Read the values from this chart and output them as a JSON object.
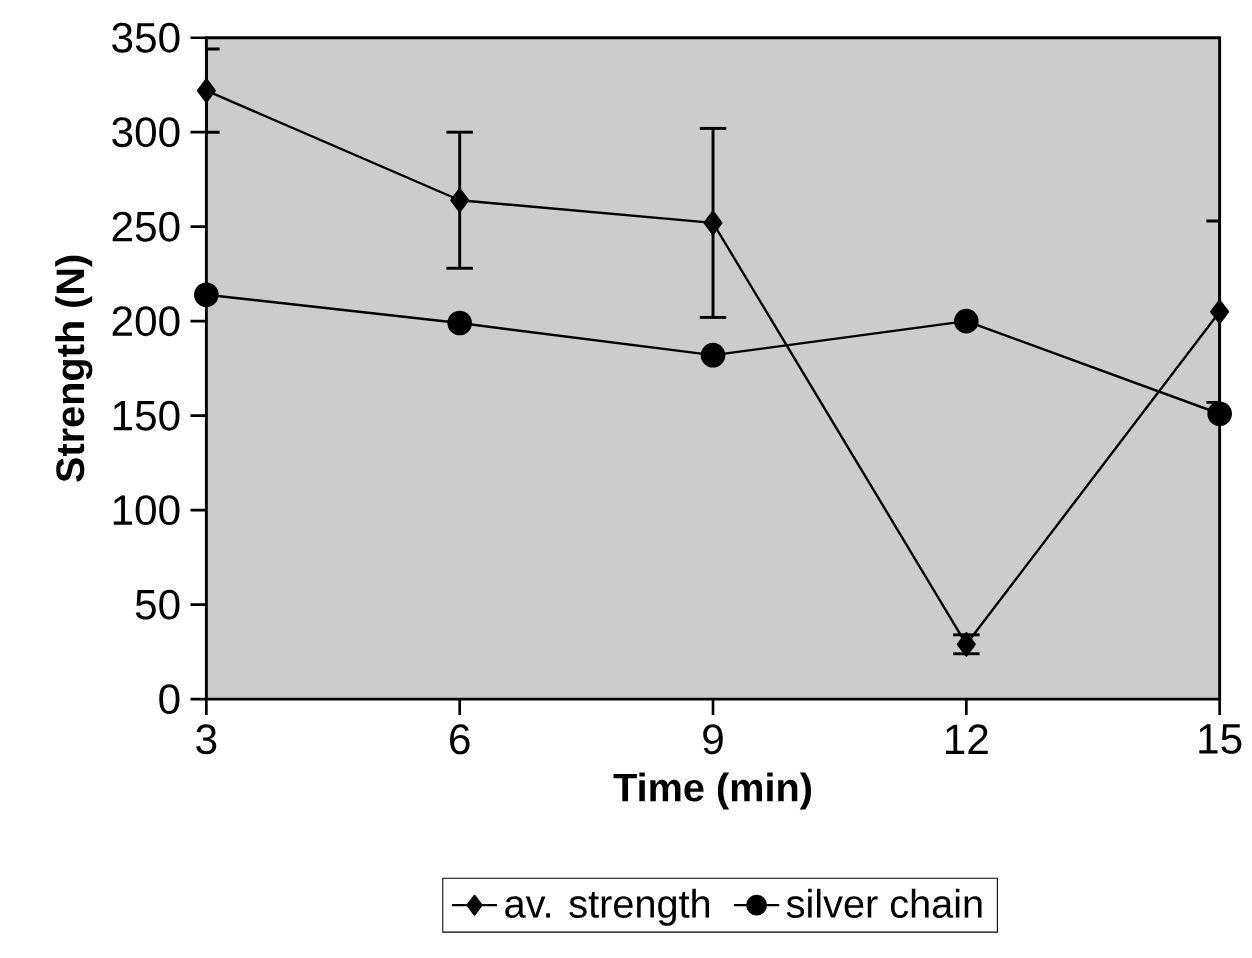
{
  "chart_data": {
    "type": "line",
    "xlabel": "Time (min)",
    "ylabel": "Strength (N)",
    "x": [
      3,
      6,
      9,
      12,
      15
    ],
    "series": [
      {
        "name": "av. strength",
        "color": "#000000",
        "marker": "diamond",
        "values": [
          322,
          264,
          252,
          29,
          205
        ],
        "errors": [
          22,
          36,
          50,
          5,
          48
        ]
      },
      {
        "name": "silver chain",
        "color": "#000000",
        "marker": "circle",
        "values": [
          214,
          199,
          182,
          200,
          151
        ]
      }
    ],
    "xlim": [
      3,
      15
    ],
    "xticks": [
      3,
      6,
      9,
      12,
      15
    ],
    "ylim": [
      0,
      350
    ],
    "yticks": [
      0,
      50,
      100,
      150,
      200,
      250,
      300,
      350
    ],
    "grid": false,
    "legend": "bottom",
    "line_style": "solid"
  }
}
